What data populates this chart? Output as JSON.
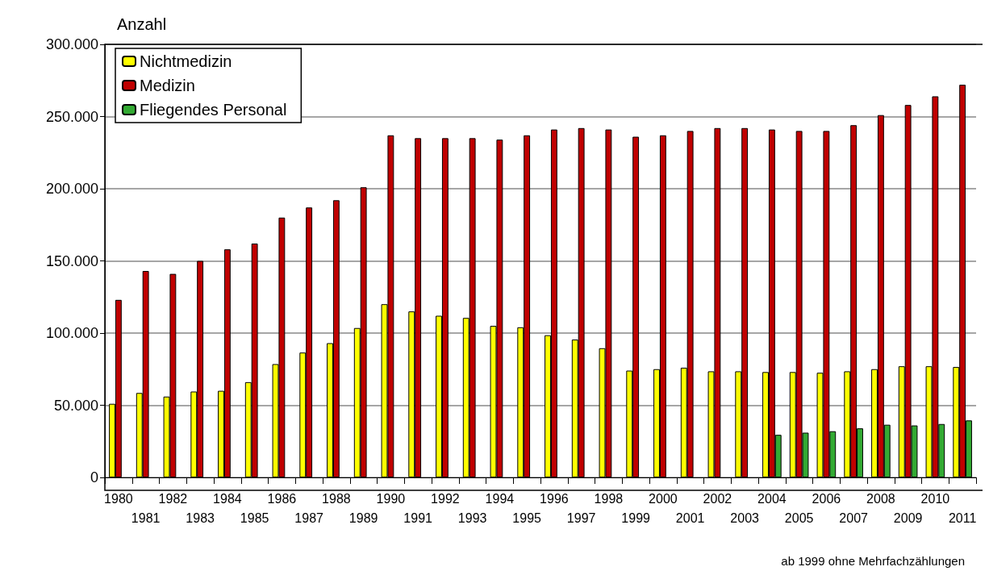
{
  "chart_data": {
    "type": "bar",
    "ylabel": "Anzahl",
    "categories": [
      "1980",
      "1981",
      "1982",
      "1983",
      "1984",
      "1985",
      "1986",
      "1987",
      "1988",
      "1989",
      "1990",
      "1991",
      "1992",
      "1993",
      "1994",
      "1995",
      "1996",
      "1997",
      "1998",
      "1999",
      "2000",
      "2001",
      "2002",
      "2003",
      "2004",
      "2005",
      "2006",
      "2007",
      "2008",
      "2009",
      "2010",
      "2011"
    ],
    "series": [
      {
        "name": "Nichtmedizin",
        "color": "#ffff00",
        "values": [
          51000,
          58500,
          56000,
          59500,
          60000,
          66000,
          78500,
          86500,
          93000,
          103500,
          120000,
          115000,
          112000,
          110500,
          105000,
          104000,
          98500,
          95500,
          89500,
          74000,
          75000,
          76000,
          73500,
          73500,
          73000,
          73000,
          72500,
          73500,
          75000,
          77000,
          77000,
          76500
        ]
      },
      {
        "name": "Medizin",
        "color": "#c00000",
        "values": [
          123000,
          143000,
          141000,
          150000,
          158000,
          162000,
          180000,
          187000,
          192000,
          201000,
          237000,
          235000,
          235000,
          235000,
          234000,
          237000,
          241000,
          242000,
          241000,
          236000,
          237000,
          240000,
          242000,
          242000,
          241000,
          240000,
          240000,
          244000,
          251000,
          258000,
          264000,
          272000
        ]
      },
      {
        "name": "Fliegendes Personal",
        "color": "#33aa33",
        "values": [
          null,
          null,
          null,
          null,
          null,
          null,
          null,
          null,
          null,
          null,
          null,
          null,
          null,
          null,
          null,
          null,
          null,
          null,
          null,
          null,
          null,
          null,
          null,
          null,
          29500,
          31000,
          32000,
          34000,
          36500,
          36000,
          37000,
          39500
        ]
      }
    ],
    "ylim": [
      0,
      300000
    ],
    "yticks": [
      {
        "value": 0,
        "label": "0"
      },
      {
        "value": 50000,
        "label": "50.000"
      },
      {
        "value": 100000,
        "label": "100.000"
      },
      {
        "value": 150000,
        "label": "150.000"
      },
      {
        "value": 200000,
        "label": "200.000"
      },
      {
        "value": 250000,
        "label": "250.000"
      },
      {
        "value": 300000,
        "label": "300.000"
      }
    ],
    "grid": "y",
    "legend": "top left",
    "annotations": [
      "ab 1999 ohne Mehrfachzählungen"
    ]
  }
}
